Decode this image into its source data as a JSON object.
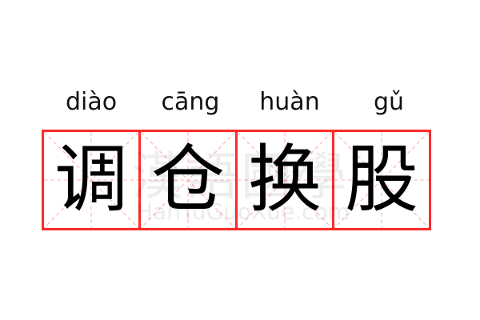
{
  "word": {
    "pinyin": [
      "diào",
      "cāng",
      "huàn",
      "gǔ"
    ],
    "characters": [
      "调",
      "仓",
      "换",
      "股"
    ]
  },
  "watermark": {
    "logo": "漢語國學",
    "site": "HanYuGuoXue.com"
  },
  "colors": {
    "grid_border": "#ff2b2b",
    "guide_lines": "#ffb0b0",
    "text": "#000000"
  }
}
